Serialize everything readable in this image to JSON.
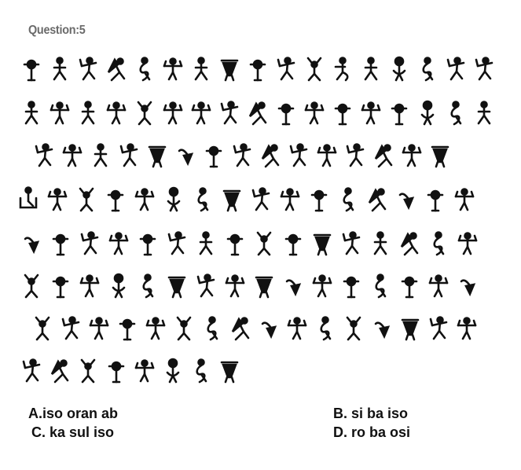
{
  "question": {
    "title": "Question:5"
  },
  "figure": {
    "description_icon": "dancing-men-cipher-glyphs",
    "lines": [
      [
        "dm-torso",
        "dm-legs-spread",
        "dm-arm-up",
        "dm-flag-spin",
        "dm-ribbon",
        "dm-arms-out",
        "dm-legs-spread",
        "dm-stick",
        "dm-torso",
        "dm-arm-up",
        "dm-arms-raised",
        "dm-wave",
        "dm-legs-spread",
        "dm-hat",
        "dm-ribbon",
        "dm-arm-up",
        "dm-arm-up"
      ],
      [
        "dm-legs-spread",
        "dm-arms-out",
        "dm-legs-spread",
        "dm-arms-out",
        "dm-arms-raised",
        "dm-arms-out",
        "dm-arms-out",
        "dm-arm-up",
        "dm-flag-spin",
        "dm-torso",
        "dm-arms-out",
        "dm-torso",
        "dm-arms-out",
        "dm-torso",
        "dm-hat",
        "dm-ribbon",
        "dm-legs-spread"
      ],
      [
        "dm-arm-up",
        "dm-arms-out",
        "dm-legs-spread",
        "dm-arm-up",
        "dm-stick",
        "dm-hook",
        "dm-torso",
        "dm-arm-up",
        "dm-flag-spin",
        "dm-arm-up",
        "dm-arms-out",
        "dm-arm-up",
        "dm-flag-spin",
        "dm-arms-out",
        "dm-stick"
      ],
      [
        "dm-bath",
        "dm-arms-out",
        "dm-arms-raised",
        "dm-torso",
        "dm-arms-out",
        "dm-hat",
        "dm-ribbon",
        "dm-stick",
        "dm-arm-up",
        "dm-arms-out",
        "dm-torso",
        "dm-ribbon",
        "dm-flag-spin",
        "dm-hook",
        "dm-torso",
        "dm-arms-out"
      ],
      [
        "dm-hook",
        "dm-torso",
        "dm-arm-up",
        "dm-arms-out",
        "dm-torso",
        "dm-arm-up",
        "dm-legs-spread",
        "dm-torso",
        "dm-arms-raised",
        "dm-torso",
        "dm-stick",
        "dm-arm-up",
        "dm-legs-spread",
        "dm-flag-spin",
        "dm-ribbon",
        "dm-arms-out"
      ],
      [
        "dm-arms-raised",
        "dm-torso",
        "dm-arms-out",
        "dm-hat",
        "dm-ribbon",
        "dm-stick",
        "dm-arm-up",
        "dm-arms-out",
        "dm-stick",
        "dm-hook",
        "dm-arms-out",
        "dm-torso",
        "dm-ribbon",
        "dm-torso",
        "dm-arms-out",
        "dm-hook"
      ],
      [
        "dm-arms-raised",
        "dm-arm-up",
        "dm-arms-out",
        "dm-torso",
        "dm-arms-out",
        "dm-arms-raised",
        "dm-ribbon",
        "dm-flag-spin",
        "dm-hook",
        "dm-arms-out",
        "dm-ribbon",
        "dm-arms-raised",
        "dm-hook",
        "dm-stick",
        "dm-arm-up",
        "dm-arms-out"
      ],
      [
        "dm-arm-up",
        "dm-flag-spin",
        "dm-arms-raised",
        "dm-torso",
        "dm-arms-out",
        "dm-hat",
        "dm-ribbon",
        "dm-stick"
      ]
    ]
  },
  "options": {
    "a": "A.iso oran ab",
    "b": "B. si ba iso",
    "c": "C. ka sul iso",
    "d": "D. ro ba osi"
  }
}
